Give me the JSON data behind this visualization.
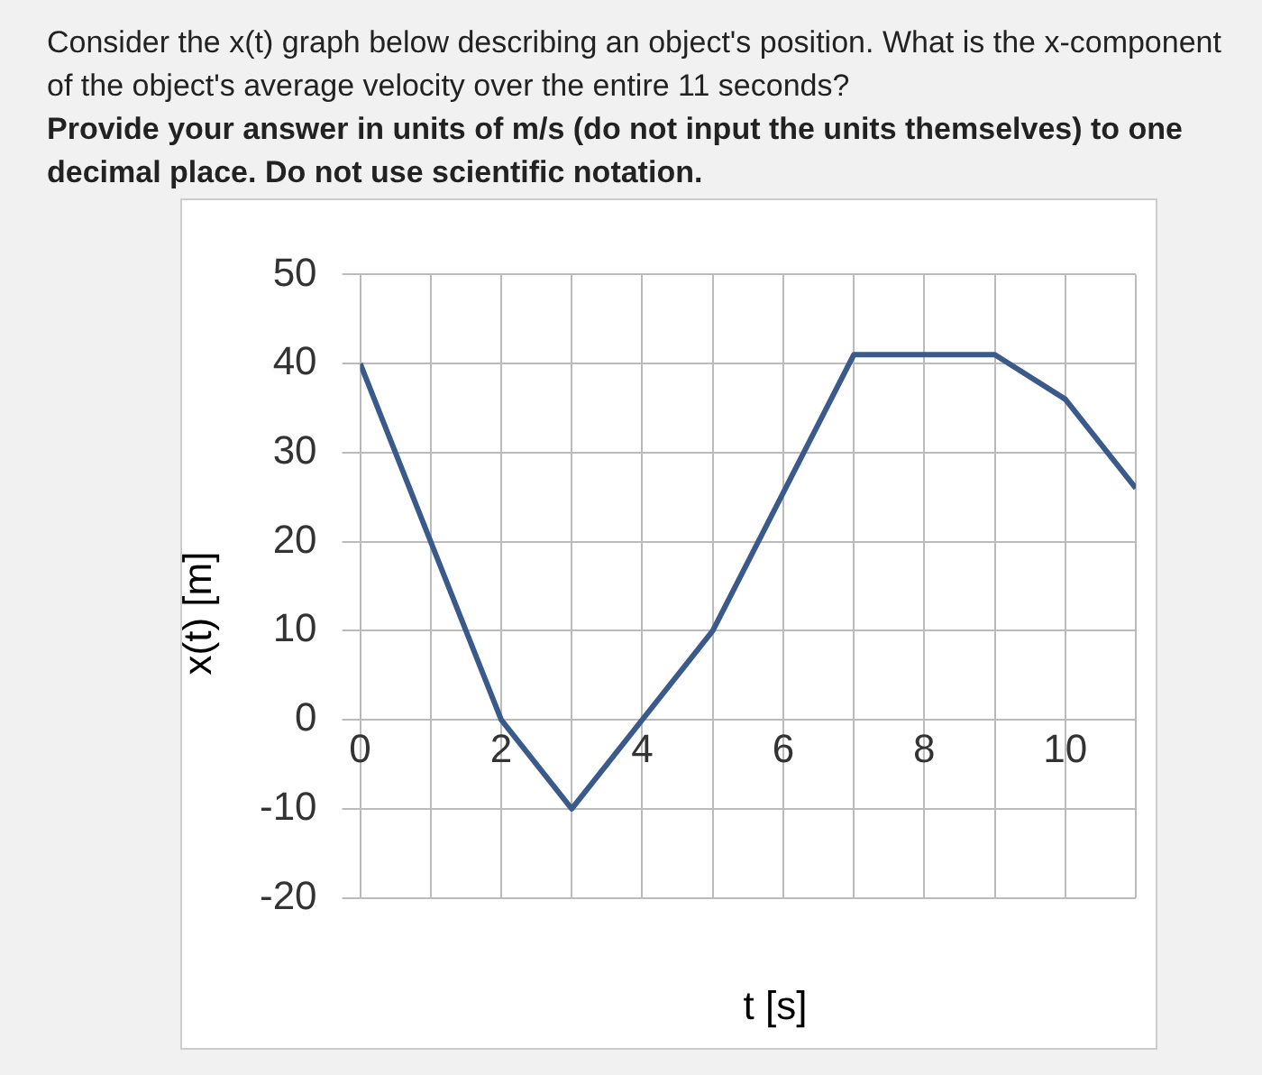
{
  "chart_data": {
    "type": "line",
    "title": "Consider the x(t) graph below describing an object's position. What is the x-component of the object's average velocity over the entire 11 seconds?",
    "subtitle": "Provide your answer in units of m/s (do not input the units themselves) to one decimal place. Do not use scientific notation.",
    "xlabel": "t [s]",
    "ylabel": "x(t) [m]",
    "x": [
      0,
      2,
      3,
      5,
      7,
      9,
      10,
      11
    ],
    "series": [
      {
        "color": "#3a5a8c",
        "values": [
          40,
          0,
          -10,
          10,
          41,
          41,
          36,
          26
        ]
      }
    ],
    "xlim": [
      0,
      11
    ],
    "xticks": [
      0,
      {
        "value": 1,
        "label": null
      },
      2,
      {
        "value": 3,
        "label": null
      },
      4,
      {
        "value": 5,
        "label": null
      },
      6,
      {
        "value": 7,
        "label": null
      },
      8,
      {
        "value": 9,
        "label": null
      },
      10,
      {
        "value": 11,
        "label": null
      }
    ],
    "ylim": [
      -20,
      50
    ],
    "yticks": [
      -20,
      -10,
      0,
      10,
      20,
      30,
      40,
      50
    ],
    "grid": true,
    "legend": false,
    "marker": "none",
    "line_style": "solid"
  }
}
